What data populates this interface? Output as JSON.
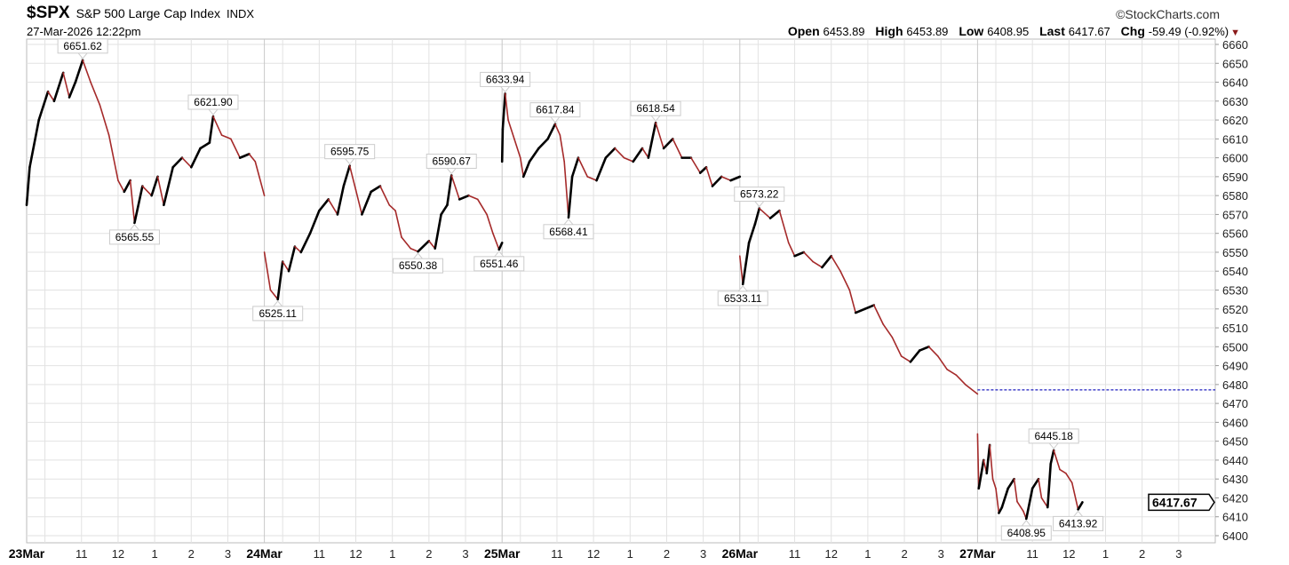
{
  "header": {
    "symbol": "$SPX",
    "name": "S&P 500 Large Cap Index",
    "exchange": "INDX",
    "timestamp": "27-Mar-2026 12:22pm",
    "copyright": "©StockCharts.com",
    "open_label": "Open",
    "open": "6453.89",
    "high_label": "High",
    "high": "6453.89",
    "low_label": "Low",
    "low": "6408.95",
    "last_label": "Last",
    "last": "6417.67",
    "chg_label": "Chg",
    "chg": "-59.49 (-0.92%)",
    "chg_arrow": "▼"
  },
  "chart_data": {
    "type": "line",
    "title": "",
    "xlabel": "",
    "ylabel": "",
    "ylim": [
      6400,
      6660
    ],
    "y_ticks": [
      6400,
      6410,
      6420,
      6430,
      6440,
      6450,
      6460,
      6470,
      6480,
      6490,
      6500,
      6510,
      6520,
      6530,
      6540,
      6550,
      6560,
      6570,
      6580,
      6590,
      6600,
      6610,
      6620,
      6630,
      6640,
      6650,
      6660
    ],
    "y_axis_side": "right",
    "grid": true,
    "session": [
      "09:30",
      "16:00"
    ],
    "days": [
      {
        "label": "23Mar",
        "hour_labels": [
          "11",
          "12",
          "1",
          "2",
          "3"
        ]
      },
      {
        "label": "24Mar",
        "hour_labels": [
          "11",
          "12",
          "1",
          "2",
          "3"
        ]
      },
      {
        "label": "25Mar",
        "hour_labels": [
          "11",
          "12",
          "1",
          "2",
          "3"
        ]
      },
      {
        "label": "26Mar",
        "hour_labels": [
          "11",
          "12",
          "1",
          "2",
          "3"
        ]
      },
      {
        "label": "27Mar",
        "hour_labels": [
          "11",
          "12",
          "1",
          "2",
          "3"
        ]
      }
    ],
    "series": [
      {
        "values": [
          [
            0,
            "09:30",
            6575
          ],
          [
            0,
            "09:35",
            6595
          ],
          [
            0,
            "09:50",
            6620
          ],
          [
            0,
            "10:05",
            6635
          ],
          [
            0,
            "10:15",
            6630
          ],
          [
            0,
            "10:30",
            6645
          ],
          [
            0,
            "10:40",
            6632
          ],
          [
            0,
            "10:50",
            6640
          ],
          [
            0,
            "11:02",
            6651.62
          ],
          [
            0,
            "11:15",
            6640
          ],
          [
            0,
            "11:30",
            6628
          ],
          [
            0,
            "11:45",
            6612
          ],
          [
            0,
            "12:00",
            6588
          ],
          [
            0,
            "12:10",
            6582
          ],
          [
            0,
            "12:20",
            6588
          ],
          [
            0,
            "12:27",
            6565.55
          ],
          [
            0,
            "12:40",
            6585
          ],
          [
            0,
            "12:55",
            6580
          ],
          [
            0,
            "13:05",
            6590
          ],
          [
            0,
            "13:15",
            6575
          ],
          [
            0,
            "13:30",
            6595
          ],
          [
            0,
            "13:45",
            6600
          ],
          [
            0,
            "14:00",
            6595
          ],
          [
            0,
            "14:15",
            6605
          ],
          [
            0,
            "14:30",
            6608
          ],
          [
            0,
            "14:36",
            6621.9
          ],
          [
            0,
            "14:50",
            6612
          ],
          [
            0,
            "15:05",
            6610
          ],
          [
            0,
            "15:20",
            6600
          ],
          [
            0,
            "15:35",
            6602
          ],
          [
            0,
            "15:45",
            6598
          ],
          [
            0,
            "16:00",
            6580
          ],
          [
            1,
            "09:30",
            6550
          ],
          [
            1,
            "09:40",
            6530
          ],
          [
            1,
            "09:52",
            6525.11
          ],
          [
            1,
            "10:00",
            6545
          ],
          [
            1,
            "10:10",
            6540
          ],
          [
            1,
            "10:20",
            6553
          ],
          [
            1,
            "10:30",
            6550
          ],
          [
            1,
            "10:45",
            6560
          ],
          [
            1,
            "11:00",
            6572
          ],
          [
            1,
            "11:15",
            6578
          ],
          [
            1,
            "11:30",
            6570
          ],
          [
            1,
            "11:40",
            6585
          ],
          [
            1,
            "11:50",
            6595.75
          ],
          [
            1,
            "12:00",
            6583
          ],
          [
            1,
            "12:10",
            6570
          ],
          [
            1,
            "12:25",
            6582
          ],
          [
            1,
            "12:40",
            6585
          ],
          [
            1,
            "12:55",
            6575
          ],
          [
            1,
            "13:05",
            6572
          ],
          [
            1,
            "13:15",
            6558
          ],
          [
            1,
            "13:30",
            6552
          ],
          [
            1,
            "13:42",
            6550.38
          ],
          [
            1,
            "14:00",
            6556
          ],
          [
            1,
            "14:10",
            6552
          ],
          [
            1,
            "14:20",
            6570
          ],
          [
            1,
            "14:30",
            6575
          ],
          [
            1,
            "14:37",
            6590.67
          ],
          [
            1,
            "14:50",
            6578
          ],
          [
            1,
            "15:05",
            6580
          ],
          [
            1,
            "15:20",
            6578
          ],
          [
            1,
            "15:35",
            6570
          ],
          [
            1,
            "15:45",
            6560
          ],
          [
            1,
            "15:55",
            6551.46
          ],
          [
            1,
            "16:00",
            6555
          ],
          [
            2,
            "09:30",
            6598
          ],
          [
            2,
            "09:31",
            6615
          ],
          [
            2,
            "09:35",
            6633.94
          ],
          [
            2,
            "09:40",
            6620
          ],
          [
            2,
            "09:50",
            6610
          ],
          [
            2,
            "10:00",
            6600
          ],
          [
            2,
            "10:05",
            6590
          ],
          [
            2,
            "10:15",
            6598
          ],
          [
            2,
            "10:30",
            6605
          ],
          [
            2,
            "10:45",
            6610
          ],
          [
            2,
            "10:57",
            6617.84
          ],
          [
            2,
            "11:05",
            6612
          ],
          [
            2,
            "11:12",
            6598
          ],
          [
            2,
            "11:19",
            6568.41
          ],
          [
            2,
            "11:25",
            6590
          ],
          [
            2,
            "11:35",
            6600
          ],
          [
            2,
            "11:50",
            6590
          ],
          [
            2,
            "12:05",
            6588
          ],
          [
            2,
            "12:20",
            6600
          ],
          [
            2,
            "12:35",
            6605
          ],
          [
            2,
            "12:50",
            6600
          ],
          [
            2,
            "13:05",
            6598
          ],
          [
            2,
            "13:20",
            6605
          ],
          [
            2,
            "13:30",
            6600
          ],
          [
            2,
            "13:42",
            6618.54
          ],
          [
            2,
            "13:55",
            6605
          ],
          [
            2,
            "14:10",
            6610
          ],
          [
            2,
            "14:25",
            6600
          ],
          [
            2,
            "14:40",
            6600
          ],
          [
            2,
            "14:55",
            6592
          ],
          [
            2,
            "15:05",
            6595
          ],
          [
            2,
            "15:15",
            6585
          ],
          [
            2,
            "15:30",
            6590
          ],
          [
            2,
            "15:45",
            6588
          ],
          [
            2,
            "16:00",
            6590
          ],
          [
            3,
            "09:30",
            6548
          ],
          [
            3,
            "09:35",
            6533.11
          ],
          [
            3,
            "09:45",
            6555
          ],
          [
            3,
            "09:55",
            6565
          ],
          [
            3,
            "10:02",
            6573.22
          ],
          [
            3,
            "10:20",
            6568
          ],
          [
            3,
            "10:35",
            6572
          ],
          [
            3,
            "10:50",
            6555
          ],
          [
            3,
            "11:00",
            6548
          ],
          [
            3,
            "11:15",
            6550
          ],
          [
            3,
            "11:30",
            6545
          ],
          [
            3,
            "11:45",
            6542
          ],
          [
            3,
            "12:00",
            6548
          ],
          [
            3,
            "12:15",
            6540
          ],
          [
            3,
            "12:30",
            6530
          ],
          [
            3,
            "12:40",
            6518
          ],
          [
            3,
            "12:55",
            6520
          ],
          [
            3,
            "13:10",
            6522
          ],
          [
            3,
            "13:25",
            6512
          ],
          [
            3,
            "13:40",
            6505
          ],
          [
            3,
            "13:55",
            6495
          ],
          [
            3,
            "14:10",
            6492
          ],
          [
            3,
            "14:25",
            6498
          ],
          [
            3,
            "14:40",
            6500
          ],
          [
            3,
            "14:55",
            6495
          ],
          [
            3,
            "15:10",
            6488
          ],
          [
            3,
            "15:25",
            6485
          ],
          [
            3,
            "15:40",
            6480
          ],
          [
            3,
            "16:00",
            6475
          ],
          [
            4,
            "09:30",
            6453.89
          ],
          [
            4,
            "09:32",
            6425
          ],
          [
            4,
            "09:40",
            6440
          ],
          [
            4,
            "09:45",
            6433
          ],
          [
            4,
            "09:50",
            6448
          ],
          [
            4,
            "09:55",
            6430
          ],
          [
            4,
            "10:00",
            6425
          ],
          [
            4,
            "10:05",
            6412
          ],
          [
            4,
            "10:10",
            6415
          ],
          [
            4,
            "10:20",
            6425
          ],
          [
            4,
            "10:30",
            6430
          ],
          [
            4,
            "10:35",
            6418
          ],
          [
            4,
            "10:45",
            6413
          ],
          [
            4,
            "10:50",
            6408.95
          ],
          [
            4,
            "11:00",
            6425
          ],
          [
            4,
            "11:10",
            6430
          ],
          [
            4,
            "11:15",
            6420
          ],
          [
            4,
            "11:25",
            6415
          ],
          [
            4,
            "11:30",
            6438
          ],
          [
            4,
            "11:35",
            6445.18
          ],
          [
            4,
            "11:45",
            6435
          ],
          [
            4,
            "11:55",
            6433
          ],
          [
            4,
            "12:05",
            6428
          ],
          [
            4,
            "12:15",
            6413.92
          ],
          [
            4,
            "12:22",
            6417.67
          ]
        ]
      }
    ],
    "annotations": [
      {
        "day": 0,
        "time": "11:02",
        "value": "6651.62",
        "pos": "above"
      },
      {
        "day": 0,
        "time": "12:27",
        "value": "6565.55",
        "pos": "below"
      },
      {
        "day": 0,
        "time": "14:36",
        "value": "6621.90",
        "pos": "above"
      },
      {
        "day": 1,
        "time": "09:52",
        "value": "6525.11",
        "pos": "below"
      },
      {
        "day": 1,
        "time": "11:50",
        "value": "6595.75",
        "pos": "above"
      },
      {
        "day": 1,
        "time": "13:42",
        "value": "6550.38",
        "pos": "below"
      },
      {
        "day": 1,
        "time": "14:37",
        "value": "6590.67",
        "pos": "above"
      },
      {
        "day": 1,
        "time": "15:55",
        "value": "6551.46",
        "pos": "below"
      },
      {
        "day": 2,
        "time": "09:35",
        "value": "6633.94",
        "pos": "above"
      },
      {
        "day": 2,
        "time": "10:57",
        "value": "6617.84",
        "pos": "above"
      },
      {
        "day": 2,
        "time": "11:19",
        "value": "6568.41",
        "pos": "below"
      },
      {
        "day": 2,
        "time": "13:42",
        "value": "6618.54",
        "pos": "above"
      },
      {
        "day": 3,
        "time": "09:35",
        "value": "6533.11",
        "pos": "below"
      },
      {
        "day": 3,
        "time": "10:02",
        "value": "6573.22",
        "pos": "above"
      },
      {
        "day": 4,
        "time": "10:50",
        "value": "6408.95",
        "pos": "below"
      },
      {
        "day": 4,
        "time": "11:35",
        "value": "6445.18",
        "pos": "above"
      },
      {
        "day": 4,
        "time": "12:15",
        "value": "6413.92",
        "pos": "below"
      }
    ],
    "previous_close_line": 6477.16,
    "last_value_label": "6417.67",
    "colors": {
      "up": "#000000",
      "down": "#a52a2a",
      "prev_close": "#1f1fbf",
      "grid": "#e2e2e2",
      "day_line": "#c8c8c8"
    }
  }
}
